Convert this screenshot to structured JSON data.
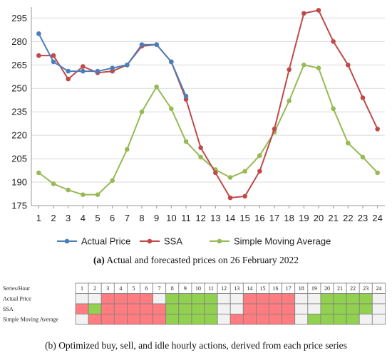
{
  "chart_data": [
    {
      "type": "line",
      "title": "",
      "xlabel": "",
      "ylabel": "",
      "x": [
        1,
        2,
        3,
        4,
        5,
        6,
        7,
        8,
        9,
        10,
        11,
        12,
        13,
        14,
        15,
        16,
        17,
        18,
        19,
        20,
        21,
        22,
        23,
        24
      ],
      "ylim": [
        175,
        302
      ],
      "yticks": [
        175,
        190,
        205,
        220,
        235,
        250,
        265,
        280,
        295
      ],
      "grid": "horizontal",
      "legend_position": "bottom",
      "series": [
        {
          "name": "Actual Price",
          "color": "#4a7ebb",
          "values": [
            285,
            267,
            261,
            261,
            261,
            263,
            265,
            278,
            278,
            267,
            245,
            null,
            null,
            null,
            null,
            null,
            null,
            null,
            null,
            null,
            null,
            null,
            null,
            null
          ]
        },
        {
          "name": "SSA",
          "color": "#be4b48",
          "values": [
            271,
            271,
            256,
            264,
            260,
            261,
            265,
            277,
            278,
            267,
            243,
            212,
            196,
            180,
            181,
            197,
            224,
            262,
            298,
            300,
            280,
            265,
            244,
            224
          ]
        },
        {
          "name": "Simple Moving Average",
          "color": "#98b954",
          "values": [
            196,
            189,
            185,
            182,
            182,
            191,
            211,
            235,
            251,
            237,
            216,
            206,
            198,
            193,
            197,
            207,
            222,
            242,
            265,
            263,
            237,
            215,
            206,
            196
          ]
        }
      ]
    },
    {
      "type": "table",
      "header_label": "Series/Hour",
      "hours": [
        1,
        2,
        3,
        4,
        5,
        6,
        7,
        8,
        9,
        10,
        11,
        12,
        13,
        14,
        15,
        16,
        17,
        18,
        19,
        20,
        21,
        22,
        23,
        24
      ],
      "colors": {
        "buy": "#92d050",
        "sell": "#ff7c80",
        "idle": "#f2f2f2"
      },
      "rows": [
        {
          "name": "Actual Price",
          "actions": [
            "idle",
            "idle",
            "sell",
            "sell",
            "sell",
            "sell",
            "idle",
            "buy",
            "buy",
            "buy",
            "buy",
            "idle",
            "idle",
            "sell",
            "sell",
            "sell",
            "sell",
            "idle",
            "idle",
            "buy",
            "buy",
            "buy",
            "buy",
            "idle"
          ]
        },
        {
          "name": "SSA",
          "actions": [
            "sell",
            "buy",
            "sell",
            "sell",
            "sell",
            "sell",
            "sell",
            "buy",
            "buy",
            "buy",
            "buy",
            "idle",
            "idle",
            "sell",
            "sell",
            "sell",
            "sell",
            "idle",
            "idle",
            "buy",
            "buy",
            "buy",
            "buy",
            "idle"
          ]
        },
        {
          "name": "Simple Moving Average",
          "actions": [
            "idle",
            "sell",
            "sell",
            "sell",
            "sell",
            "sell",
            "sell",
            "buy",
            "buy",
            "buy",
            "buy",
            "idle",
            "sell",
            "sell",
            "sell",
            "sell",
            "sell",
            "idle",
            "buy",
            "buy",
            "buy",
            "buy",
            "idle",
            "idle"
          ]
        }
      ]
    }
  ],
  "captions": {
    "a_label": "(a)",
    "a_text": "Actual and forecasted prices on 26 February 2022",
    "b_label": "(b)",
    "b_text": "Optimized buy, sell, and idle hourly actions, derived from each price series"
  }
}
